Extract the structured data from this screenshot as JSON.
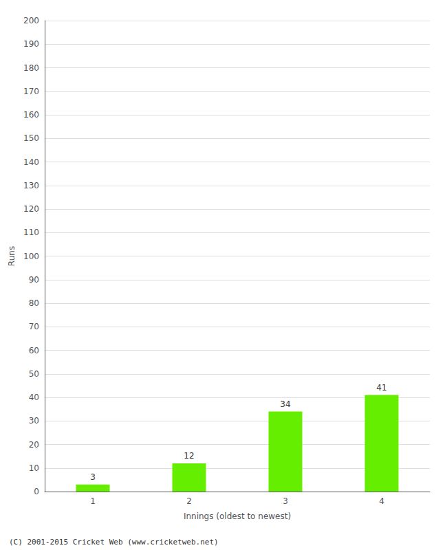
{
  "chart_data": {
    "type": "bar",
    "categories": [
      1,
      2,
      3,
      4
    ],
    "values": [
      3,
      12,
      34,
      41
    ],
    "color": "#66ee00",
    "xlabel": "Innings (oldest to newest)",
    "ylabel": "Runs",
    "ylim": [
      0,
      200
    ],
    "yticks": [
      0,
      10,
      20,
      30,
      40,
      50,
      60,
      70,
      80,
      90,
      100,
      110,
      120,
      130,
      140,
      150,
      160,
      170,
      180,
      190,
      200
    ],
    "grid": true,
    "data_labels": true,
    "annotations": [
      "(C) 2001-2015 Cricket Web (www.cricketweb.net)"
    ]
  }
}
